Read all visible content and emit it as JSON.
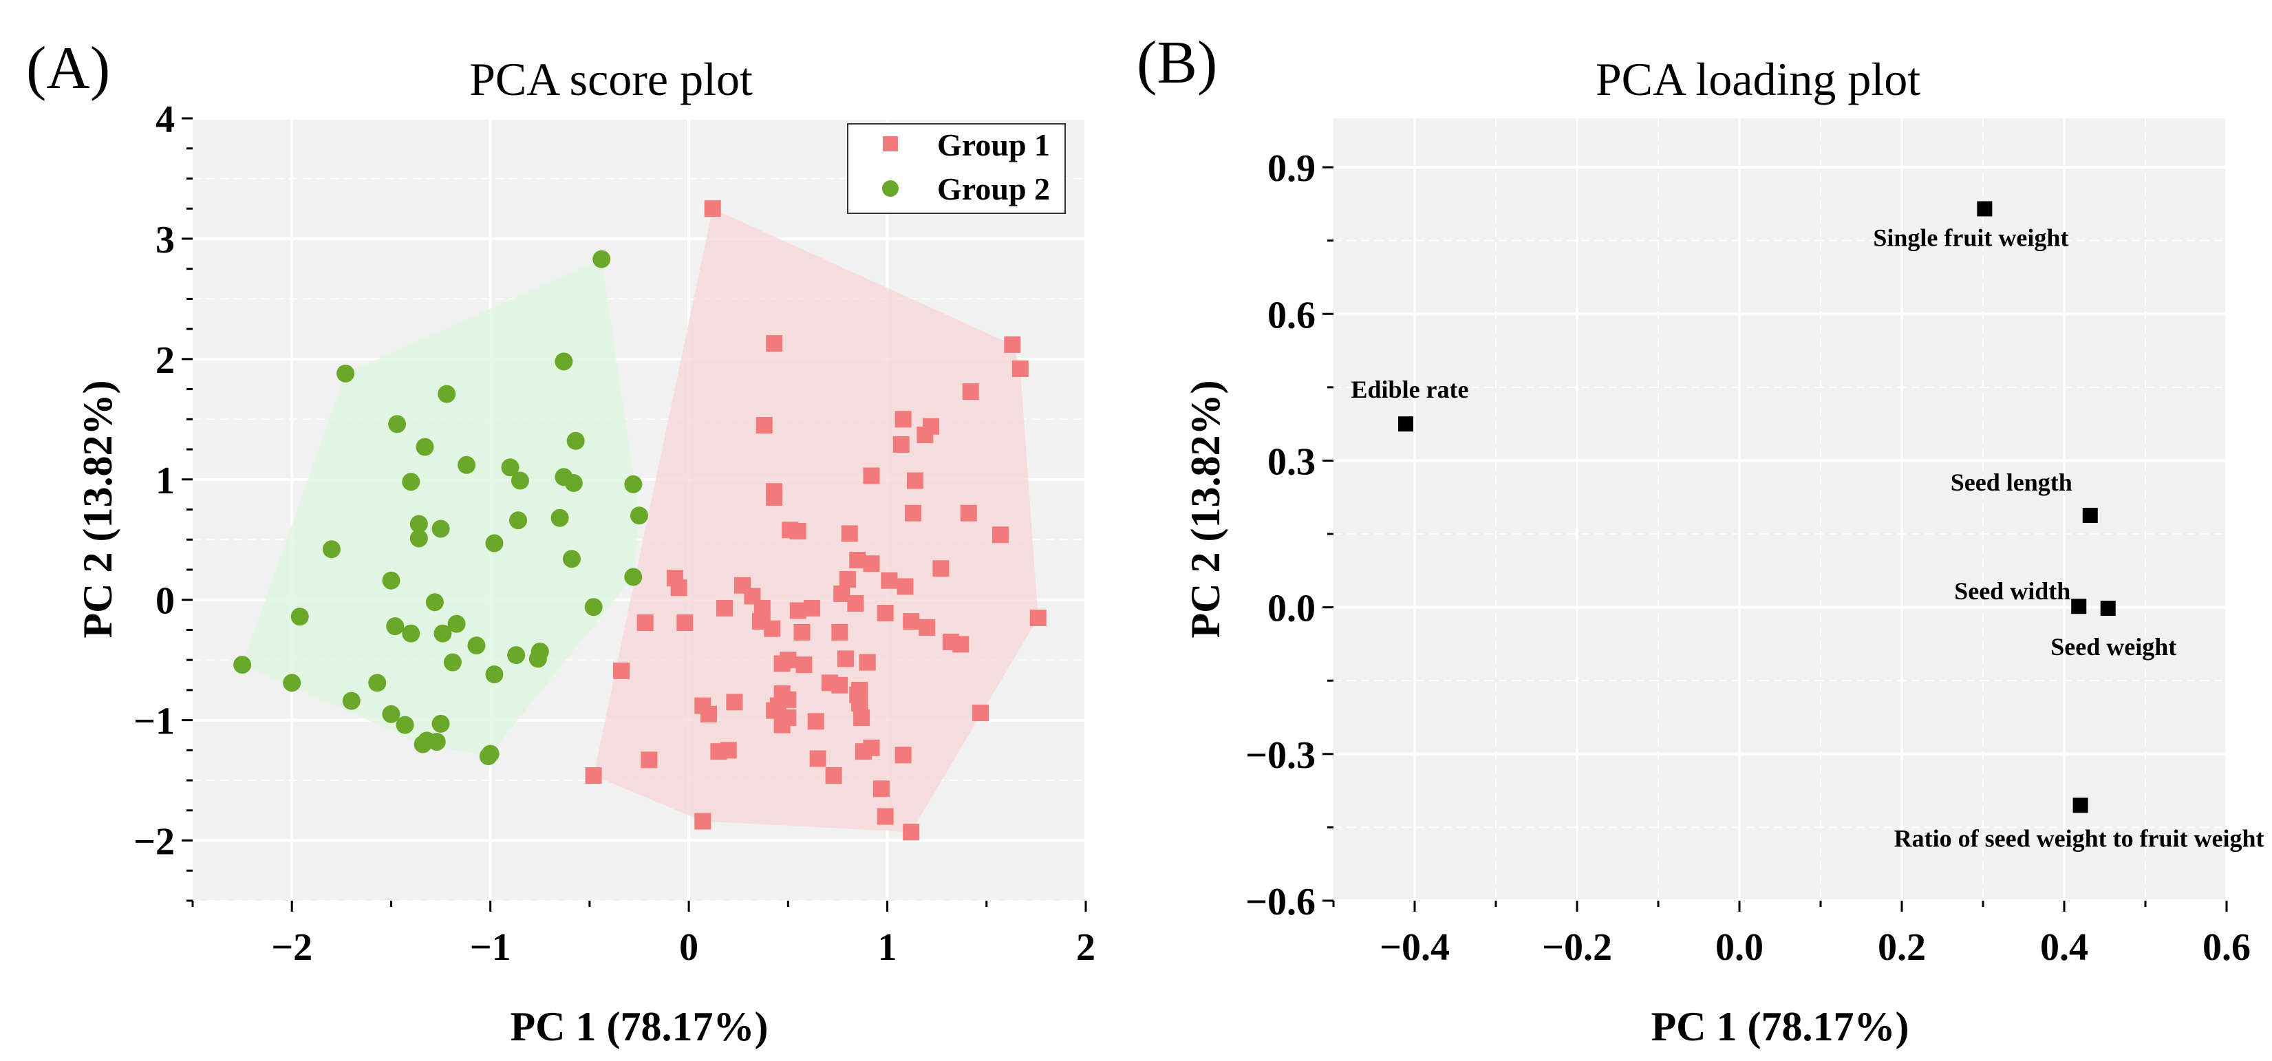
{
  "chart_data": [
    {
      "panel_label": "(A)",
      "type": "scatter",
      "title": "PCA score plot",
      "xlabel": "PC 1 (78.17%)",
      "ylabel": "PC 2 (13.82%)",
      "xlim": [
        -2.5,
        2.0
      ],
      "ylim": [
        -2.5,
        4.0
      ],
      "xticks": [
        -2,
        -1,
        0,
        1,
        2
      ],
      "xtick_labels": [
        "−2",
        "−1",
        "0",
        "1",
        "2"
      ],
      "yticks": [
        -2,
        -1,
        0,
        1,
        2,
        3,
        4
      ],
      "ytick_labels": [
        "−2",
        "−1",
        "0",
        "1",
        "2",
        "3",
        "4"
      ],
      "grid": true,
      "legend_position": "top-right",
      "series": [
        {
          "name": "Group 1",
          "marker": "square",
          "color": "#f27a7a",
          "hull_color": "#f8d8d8",
          "points": [
            [
              0.12,
              3.25
            ],
            [
              1.63,
              2.12
            ],
            [
              1.67,
              1.92
            ],
            [
              0.43,
              2.13
            ],
            [
              1.42,
              1.73
            ],
            [
              0.38,
              1.45
            ],
            [
              1.08,
              1.5
            ],
            [
              1.22,
              1.44
            ],
            [
              1.19,
              1.37
            ],
            [
              1.07,
              1.29
            ],
            [
              0.92,
              1.03
            ],
            [
              1.14,
              0.99
            ],
            [
              0.43,
              0.9
            ],
            [
              0.43,
              0.85
            ],
            [
              1.13,
              0.72
            ],
            [
              1.41,
              0.72
            ],
            [
              0.51,
              0.58
            ],
            [
              0.81,
              0.55
            ],
            [
              1.57,
              0.54
            ],
            [
              0.55,
              0.57
            ],
            [
              0.85,
              0.33
            ],
            [
              0.92,
              0.3
            ],
            [
              1.27,
              0.26
            ],
            [
              0.8,
              0.17
            ],
            [
              1.01,
              0.16
            ],
            [
              -0.07,
              0.18
            ],
            [
              -0.05,
              0.1
            ],
            [
              0.27,
              0.12
            ],
            [
              0.32,
              0.03
            ],
            [
              0.77,
              0.05
            ],
            [
              1.09,
              0.11
            ],
            [
              0.18,
              -0.07
            ],
            [
              0.37,
              -0.07
            ],
            [
              0.55,
              -0.09
            ],
            [
              0.62,
              -0.07
            ],
            [
              0.84,
              -0.03
            ],
            [
              0.99,
              -0.11
            ],
            [
              0.37,
              -0.17
            ],
            [
              1.12,
              -0.18
            ],
            [
              -0.22,
              -0.19
            ],
            [
              -0.02,
              -0.19
            ],
            [
              0.36,
              -0.18
            ],
            [
              0.42,
              -0.24
            ],
            [
              0.57,
              -0.27
            ],
            [
              0.76,
              -0.27
            ],
            [
              1.2,
              -0.23
            ],
            [
              1.32,
              -0.35
            ],
            [
              1.37,
              -0.37
            ],
            [
              1.76,
              -0.15
            ],
            [
              0.5,
              -0.5
            ],
            [
              0.47,
              -0.53
            ],
            [
              0.58,
              -0.54
            ],
            [
              0.79,
              -0.49
            ],
            [
              0.9,
              -0.52
            ],
            [
              -0.34,
              -0.59
            ],
            [
              0.47,
              -0.78
            ],
            [
              0.71,
              -0.69
            ],
            [
              0.76,
              -0.71
            ],
            [
              0.86,
              -0.75
            ],
            [
              0.85,
              -0.79
            ],
            [
              0.86,
              -0.86
            ],
            [
              0.07,
              -0.88
            ],
            [
              0.1,
              -0.95
            ],
            [
              0.23,
              -0.85
            ],
            [
              0.45,
              -0.88
            ],
            [
              0.5,
              -0.83
            ],
            [
              0.43,
              -0.92
            ],
            [
              0.5,
              -0.98
            ],
            [
              0.47,
              -1.04
            ],
            [
              0.64,
              -1.01
            ],
            [
              0.87,
              -0.98
            ],
            [
              1.47,
              -0.94
            ],
            [
              0.15,
              -1.26
            ],
            [
              0.2,
              -1.25
            ],
            [
              0.65,
              -1.32
            ],
            [
              0.88,
              -1.26
            ],
            [
              0.92,
              -1.23
            ],
            [
              0.73,
              -1.46
            ],
            [
              1.08,
              -1.29
            ],
            [
              -0.48,
              -1.46
            ],
            [
              -0.2,
              -1.33
            ],
            [
              0.07,
              -1.84
            ],
            [
              0.97,
              -1.57
            ],
            [
              0.99,
              -1.8
            ],
            [
              1.12,
              -1.93
            ]
          ]
        },
        {
          "name": "Group 2",
          "marker": "circle",
          "color": "#6aa82a",
          "hull_color": "#dff4df",
          "points": [
            [
              -0.44,
              2.83
            ],
            [
              -0.63,
              1.98
            ],
            [
              -1.73,
              1.88
            ],
            [
              -1.22,
              1.71
            ],
            [
              -1.47,
              1.46
            ],
            [
              -1.33,
              1.27
            ],
            [
              -0.57,
              1.32
            ],
            [
              -1.12,
              1.12
            ],
            [
              -0.9,
              1.1
            ],
            [
              -1.4,
              0.98
            ],
            [
              -0.85,
              0.99
            ],
            [
              -0.63,
              1.02
            ],
            [
              -0.58,
              0.97
            ],
            [
              -0.28,
              0.96
            ],
            [
              -1.25,
              0.59
            ],
            [
              -1.36,
              0.63
            ],
            [
              -0.86,
              0.66
            ],
            [
              -0.65,
              0.68
            ],
            [
              -0.25,
              0.7
            ],
            [
              -1.36,
              0.51
            ],
            [
              -1.8,
              0.42
            ],
            [
              -0.98,
              0.47
            ],
            [
              -0.59,
              0.34
            ],
            [
              -1.5,
              0.16
            ],
            [
              -0.28,
              0.19
            ],
            [
              -1.28,
              -0.02
            ],
            [
              -0.48,
              -0.06
            ],
            [
              -1.96,
              -0.14
            ],
            [
              -1.48,
              -0.22
            ],
            [
              -1.4,
              -0.28
            ],
            [
              -1.17,
              -0.2
            ],
            [
              -1.07,
              -0.38
            ],
            [
              -0.75,
              -0.43
            ],
            [
              -0.76,
              -0.49
            ],
            [
              -1.24,
              -0.28
            ],
            [
              -0.87,
              -0.46
            ],
            [
              -1.19,
              -0.52
            ],
            [
              -2.25,
              -0.54
            ],
            [
              -1.57,
              -0.69
            ],
            [
              -2.0,
              -0.69
            ],
            [
              -0.98,
              -0.62
            ],
            [
              -1.7,
              -0.84
            ],
            [
              -1.5,
              -0.95
            ],
            [
              -1.43,
              -1.04
            ],
            [
              -1.25,
              -1.03
            ],
            [
              -1.32,
              -1.17
            ],
            [
              -1.34,
              -1.2
            ],
            [
              -1.27,
              -1.18
            ],
            [
              -1.0,
              -1.28
            ],
            [
              -1.01,
              -1.3
            ]
          ]
        }
      ]
    },
    {
      "panel_label": "(B)",
      "type": "scatter",
      "title": "PCA loading plot",
      "xlabel": "PC 1 (78.17%)",
      "ylabel": "PC 2 (13.82%)",
      "xlim": [
        -0.5,
        0.6
      ],
      "ylim": [
        -0.6,
        1.0
      ],
      "xticks": [
        -0.4,
        -0.2,
        0.0,
        0.2,
        0.4,
        0.6
      ],
      "xtick_labels": [
        "−0.4",
        "−0.2",
        "0.0",
        "0.2",
        "0.4",
        "0.6"
      ],
      "yticks": [
        -0.6,
        -0.3,
        0.0,
        0.3,
        0.6,
        0.9
      ],
      "ytick_labels": [
        "−0.6",
        "−0.3",
        "0.0",
        "0.3",
        "0.6",
        "0.9"
      ],
      "grid": true,
      "points": [
        {
          "label": "Single fruit weight",
          "x": 0.302,
          "y": 0.815,
          "label_anchor": "below"
        },
        {
          "label": "Edible rate",
          "x": -0.411,
          "y": 0.375,
          "label_anchor": "above"
        },
        {
          "label": "Seed length",
          "x": 0.432,
          "y": 0.188,
          "label_anchor": "above-left"
        },
        {
          "label": "Seed width",
          "x": 0.418,
          "y": 0.002,
          "label_anchor": "left"
        },
        {
          "label": "Seed weight",
          "x": 0.454,
          "y": -0.002,
          "label_anchor": "below"
        },
        {
          "label": "Ratio of seed weight to fruit weight",
          "x": 0.42,
          "y": -0.405,
          "label_anchor": "below"
        }
      ]
    }
  ]
}
